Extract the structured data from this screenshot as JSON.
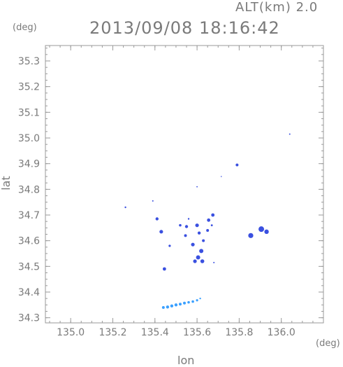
{
  "header": {
    "altitude_label": "ALT(km) 2.0",
    "timestamp": "2013/09/08 18:16:42"
  },
  "chart_data": {
    "type": "scatter",
    "title": "2013/09/08 18:16:42",
    "xlabel": "lon",
    "ylabel": "lat",
    "x_unit": "(deg)",
    "y_unit": "(deg)",
    "xlim": [
      134.88,
      136.2
    ],
    "ylim": [
      34.28,
      35.36
    ],
    "x_ticks": [
      135.0,
      135.2,
      135.4,
      135.6,
      135.8,
      136.0
    ],
    "x_tick_labels": [
      "135.0",
      "135.2",
      "135.4",
      "135.6",
      "135.8",
      "136.0"
    ],
    "y_ticks": [
      34.3,
      34.4,
      34.5,
      34.6,
      34.7,
      34.8,
      34.9,
      35.0,
      35.1,
      35.2,
      35.3
    ],
    "y_tick_labels": [
      "34.3",
      "34.4",
      "34.5",
      "34.6",
      "34.7",
      "34.8",
      "34.9",
      "35.0",
      "35.1",
      "35.2",
      "35.3"
    ],
    "grid": false,
    "colors": {
      "echo_blue": "#3a50e0",
      "echo_light": "#3aa0ff",
      "axis": "#9a9a9a"
    },
    "series": [
      {
        "values": [
          {
            "x": 135.26,
            "y": 34.73,
            "r": 1.2
          },
          {
            "x": 135.39,
            "y": 34.755,
            "r": 1.0
          },
          {
            "x": 135.41,
            "y": 34.685,
            "r": 2.2
          },
          {
            "x": 135.43,
            "y": 34.635,
            "r": 2.6
          },
          {
            "x": 135.47,
            "y": 34.58,
            "r": 1.6
          },
          {
            "x": 135.445,
            "y": 34.49,
            "r": 2.4
          },
          {
            "x": 135.52,
            "y": 34.66,
            "r": 1.8
          },
          {
            "x": 135.55,
            "y": 34.655,
            "r": 2.2
          },
          {
            "x": 135.545,
            "y": 34.62,
            "r": 2.0
          },
          {
            "x": 135.56,
            "y": 34.685,
            "r": 1.2
          },
          {
            "x": 135.58,
            "y": 34.585,
            "r": 2.6
          },
          {
            "x": 135.6,
            "y": 34.66,
            "r": 2.6
          },
          {
            "x": 135.61,
            "y": 34.63,
            "r": 2.2
          },
          {
            "x": 135.62,
            "y": 34.56,
            "r": 3.0
          },
          {
            "x": 135.605,
            "y": 34.535,
            "r": 3.0
          },
          {
            "x": 135.625,
            "y": 34.52,
            "r": 2.8
          },
          {
            "x": 135.59,
            "y": 34.52,
            "r": 2.6
          },
          {
            "x": 135.63,
            "y": 34.6,
            "r": 2.0
          },
          {
            "x": 135.65,
            "y": 34.64,
            "r": 2.0
          },
          {
            "x": 135.655,
            "y": 34.68,
            "r": 2.4
          },
          {
            "x": 135.675,
            "y": 34.7,
            "r": 2.4
          },
          {
            "x": 135.67,
            "y": 34.66,
            "r": 1.4
          },
          {
            "x": 135.68,
            "y": 34.515,
            "r": 1.0
          },
          {
            "x": 135.6,
            "y": 34.81,
            "r": 0.9
          },
          {
            "x": 135.79,
            "y": 34.895,
            "r": 2.0
          },
          {
            "x": 135.715,
            "y": 34.85,
            "r": 0.8
          },
          {
            "x": 135.855,
            "y": 34.62,
            "r": 3.6
          },
          {
            "x": 135.905,
            "y": 34.645,
            "r": 4.0
          },
          {
            "x": 135.93,
            "y": 34.635,
            "r": 3.2
          },
          {
            "x": 136.04,
            "y": 35.015,
            "r": 1.0
          }
        ]
      },
      {
        "values": [
          {
            "x": 135.44,
            "y": 34.34,
            "r": 2.0
          },
          {
            "x": 135.46,
            "y": 34.342,
            "r": 2.2
          },
          {
            "x": 135.48,
            "y": 34.346,
            "r": 2.2
          },
          {
            "x": 135.5,
            "y": 34.35,
            "r": 2.2
          },
          {
            "x": 135.52,
            "y": 34.353,
            "r": 2.0
          },
          {
            "x": 135.54,
            "y": 34.357,
            "r": 2.0
          },
          {
            "x": 135.56,
            "y": 34.36,
            "r": 1.8
          },
          {
            "x": 135.58,
            "y": 34.363,
            "r": 1.8
          },
          {
            "x": 135.6,
            "y": 34.368,
            "r": 1.6
          },
          {
            "x": 135.615,
            "y": 34.375,
            "r": 1.2
          }
        ]
      }
    ]
  }
}
